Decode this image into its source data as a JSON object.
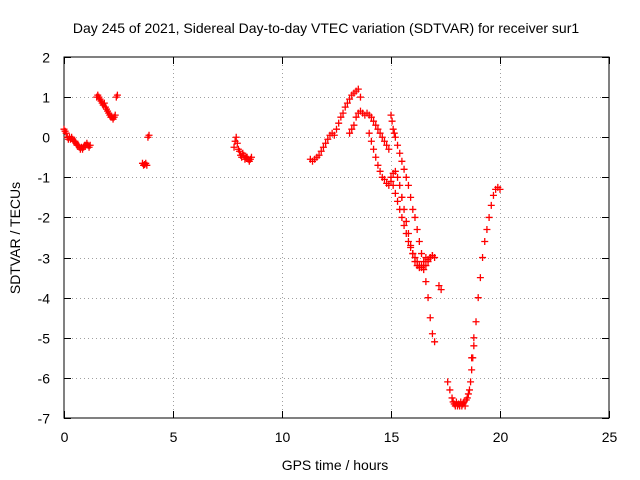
{
  "chart_data": {
    "type": "scatter",
    "title": "Day 245 of 2021, Sidereal Day-to-day VTEC variation (SDTVAR) for receiver sur1",
    "xlabel": "GPS time / hours",
    "ylabel": "SDTVAR / TECUs",
    "xlim": [
      0,
      25
    ],
    "ylim": [
      -7,
      2
    ],
    "xticks": [
      0,
      5,
      10,
      15,
      20,
      25
    ],
    "yticks": [
      -7,
      -6,
      -5,
      -4,
      -3,
      -2,
      -1,
      0,
      1,
      2
    ],
    "grid": true,
    "marker": "+",
    "color": "#ff0000",
    "series": [
      {
        "name": "sur1",
        "x": [
          0.0,
          0.05,
          0.1,
          0.15,
          0.2,
          0.25,
          0.3,
          0.35,
          0.4,
          0.45,
          0.5,
          0.55,
          0.6,
          0.65,
          0.7,
          0.75,
          0.8,
          0.85,
          0.9,
          0.95,
          1.0,
          1.05,
          1.1,
          1.15,
          1.2,
          1.5,
          1.55,
          1.6,
          1.65,
          1.7,
          1.75,
          1.8,
          1.85,
          1.9,
          1.95,
          2.0,
          2.05,
          2.1,
          2.15,
          2.2,
          2.25,
          2.3,
          2.35,
          2.4,
          2.45,
          3.6,
          3.65,
          3.7,
          3.75,
          3.8,
          3.85,
          3.9,
          7.8,
          7.85,
          7.9,
          7.95,
          8.0,
          8.05,
          8.1,
          8.15,
          8.2,
          8.25,
          8.3,
          8.35,
          8.4,
          8.45,
          8.5,
          8.55,
          8.6,
          11.3,
          11.4,
          11.5,
          11.6,
          11.7,
          11.8,
          11.9,
          12.0,
          12.1,
          12.2,
          12.3,
          12.4,
          12.5,
          12.6,
          12.7,
          12.8,
          12.9,
          13.0,
          13.1,
          13.2,
          13.3,
          13.4,
          13.5,
          13.6,
          13.1,
          13.2,
          13.3,
          13.4,
          13.5,
          13.6,
          13.7,
          13.8,
          13.9,
          14.0,
          14.1,
          14.2,
          14.3,
          14.4,
          14.5,
          14.6,
          14.7,
          14.8,
          14.9,
          14.0,
          14.1,
          14.2,
          14.3,
          14.4,
          14.5,
          14.6,
          14.7,
          14.8,
          14.9,
          15.0,
          15.1,
          15.2,
          15.3,
          15.4,
          15.5,
          15.0,
          15.05,
          15.1,
          15.15,
          15.2,
          15.3,
          15.4,
          15.5,
          15.6,
          15.7,
          15.8,
          15.9,
          16.0,
          16.1,
          16.2,
          16.3,
          16.4,
          16.5,
          16.6,
          16.7,
          16.8,
          16.9,
          17.0,
          15.0,
          15.1,
          15.2,
          15.3,
          15.4,
          15.5,
          15.6,
          15.7,
          15.8,
          15.9,
          16.0,
          16.1,
          16.2,
          16.3,
          16.4,
          16.5,
          16.6,
          16.7,
          16.8,
          16.9,
          17.0,
          15.5,
          15.6,
          15.7,
          15.8,
          15.9,
          16.0,
          16.1,
          16.2,
          16.3,
          16.4,
          16.5,
          16.6,
          16.7,
          16.8,
          16.9,
          17.2,
          17.3,
          17.6,
          17.7,
          17.8,
          17.85,
          17.9,
          17.95,
          18.0,
          18.05,
          18.1,
          18.15,
          18.2,
          18.25,
          18.3,
          18.35,
          18.4,
          18.45,
          18.5,
          18.55,
          18.6,
          18.65,
          18.7,
          18.75,
          18.8,
          18.7,
          18.8,
          18.9,
          19.0,
          19.1,
          19.2,
          19.3,
          19.4,
          19.5,
          19.6,
          19.7,
          19.8,
          19.9,
          20.0
        ],
        "y": [
          0.2,
          0.15,
          0.1,
          0.0,
          -0.05,
          0.0,
          -0.05,
          0.0,
          -0.05,
          -0.1,
          -0.1,
          -0.15,
          -0.2,
          -0.2,
          -0.25,
          -0.3,
          -0.25,
          -0.3,
          -0.25,
          -0.2,
          -0.2,
          -0.15,
          -0.2,
          -0.25,
          -0.2,
          1.0,
          1.05,
          1.0,
          0.95,
          0.9,
          0.85,
          0.8,
          0.85,
          0.75,
          0.7,
          0.65,
          0.6,
          0.55,
          0.5,
          0.5,
          0.45,
          0.5,
          0.55,
          1.0,
          1.05,
          -0.65,
          -0.7,
          -0.68,
          -0.65,
          -0.7,
          0.0,
          0.05,
          -0.25,
          -0.1,
          0.0,
          -0.15,
          -0.3,
          -0.35,
          -0.45,
          -0.5,
          -0.4,
          -0.45,
          -0.55,
          -0.5,
          -0.5,
          -0.55,
          -0.6,
          -0.55,
          -0.5,
          -0.55,
          -0.6,
          -0.55,
          -0.5,
          -0.45,
          -0.35,
          -0.25,
          -0.15,
          -0.05,
          0.05,
          0.1,
          0.05,
          0.2,
          0.35,
          0.5,
          0.6,
          0.75,
          0.85,
          0.95,
          1.05,
          1.1,
          1.15,
          1.2,
          1.0,
          0.1,
          0.2,
          0.3,
          0.5,
          0.6,
          0.65,
          0.6,
          0.55,
          0.6,
          0.55,
          0.5,
          0.4,
          0.3,
          0.2,
          0.1,
          0.0,
          -0.1,
          -0.2,
          -0.3,
          0.1,
          -0.1,
          -0.3,
          -0.5,
          -0.7,
          -0.85,
          -1.0,
          -1.05,
          -1.15,
          -1.2,
          -1.1,
          -0.9,
          -0.85,
          -1.0,
          -1.2,
          -1.5,
          0.55,
          0.4,
          0.2,
          0.1,
          0.0,
          -0.2,
          -0.4,
          -0.6,
          -0.8,
          -1.0,
          -1.2,
          -1.5,
          -1.8,
          -2.0,
          -2.3,
          -2.6,
          -2.9,
          -3.2,
          -3.6,
          -4.0,
          -4.5,
          -4.9,
          -5.1,
          -1.0,
          -1.2,
          -1.4,
          -1.6,
          -1.8,
          -2.0,
          -2.2,
          -2.4,
          -2.6,
          -2.75,
          -2.9,
          -3.0,
          -3.1,
          -3.2,
          -3.25,
          -3.3,
          -3.2,
          -3.1,
          -3.0,
          -2.95,
          -3.0,
          -1.5,
          -1.8,
          -2.1,
          -2.4,
          -2.7,
          -2.9,
          -3.1,
          -3.2,
          -3.25,
          -3.2,
          -3.1,
          -3.0,
          -3.05,
          -3.0,
          -2.95,
          -3.7,
          -3.8,
          -6.1,
          -6.3,
          -6.5,
          -6.6,
          -6.65,
          -6.7,
          -6.6,
          -6.7,
          -6.65,
          -6.7,
          -6.6,
          -6.7,
          -6.65,
          -6.6,
          -6.7,
          -6.55,
          -6.5,
          -6.4,
          -6.3,
          -6.1,
          -5.8,
          -5.5,
          -5.2,
          -5.5,
          -5.0,
          -4.6,
          -4.0,
          -3.5,
          -3.0,
          -2.6,
          -2.3,
          -2.0,
          -1.7,
          -1.45,
          -1.3,
          -1.25,
          -1.3
        ]
      }
    ]
  }
}
